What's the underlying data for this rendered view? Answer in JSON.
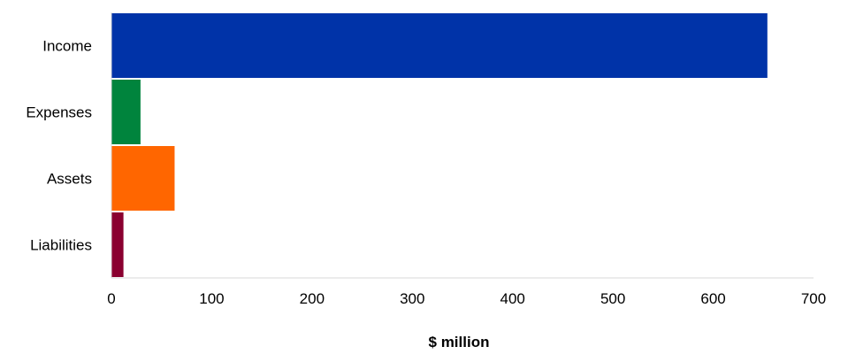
{
  "chart_data": {
    "type": "bar",
    "orientation": "horizontal",
    "categories": [
      "Income",
      "Expenses",
      "Assets",
      "Liabilities"
    ],
    "values": [
      654,
      29,
      63,
      12
    ],
    "colors": [
      "#0033a8",
      "#00843d",
      "#ff6600",
      "#8a0030"
    ],
    "xlabel": "$ million",
    "ylabel": "",
    "xlim": [
      0,
      700
    ],
    "xticks": [
      "0",
      "100",
      "200",
      "300",
      "400",
      "500",
      "600",
      "700"
    ],
    "grid": false,
    "legend": "none"
  }
}
